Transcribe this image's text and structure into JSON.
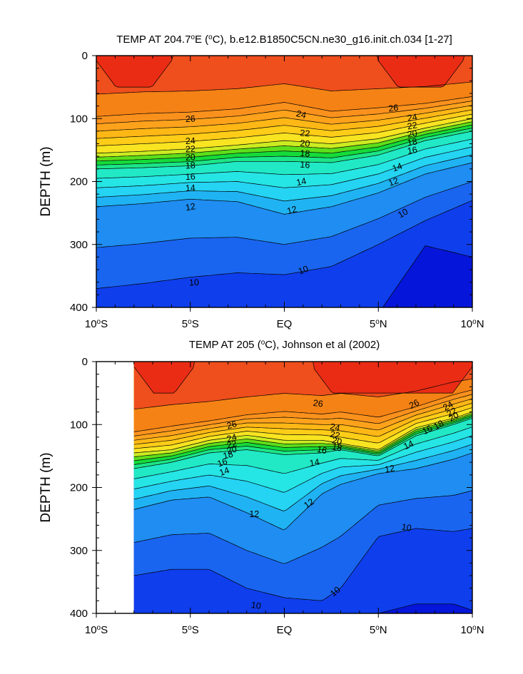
{
  "chart_data": [
    {
      "type": "contour",
      "title_parts": [
        "TEMP AT 204.7",
        "o",
        "E (",
        "o",
        "C), b.e12.B1850C5CN.ne30_g16.init.ch.034 [1-27]"
      ],
      "xlabel": "",
      "ylabel": "DEPTH (m)",
      "xlim": [
        -10,
        10
      ],
      "ylim": [
        400,
        0
      ],
      "x_ticks": [
        -10,
        -5,
        0,
        5,
        10
      ],
      "x_tick_labels": [
        [
          "10",
          "o",
          "S"
        ],
        [
          "5",
          "o",
          "S"
        ],
        [
          "EQ"
        ],
        [
          "5",
          "o",
          "N"
        ],
        [
          "10",
          "o",
          "N"
        ]
      ],
      "y_ticks": [
        0,
        100,
        200,
        300,
        400
      ],
      "y_tick_labels": [
        "0",
        "100",
        "200",
        "300",
        "400"
      ],
      "data_start_lat": -10,
      "contour_interval": 1,
      "surface_warm_pools": [
        [
          -10,
          -6
        ],
        [
          5,
          9.5
        ]
      ],
      "isotherm_depths": {
        "lat": [
          -10,
          -7.5,
          -5,
          -2.5,
          0,
          2.5,
          5,
          7.5,
          10
        ],
        "t26": [
          85,
          80,
          78,
          73,
          62,
          78,
          73,
          68,
          58
        ],
        "t20": [
          155,
          152,
          148,
          142,
          135,
          140,
          132,
          115,
          100
        ],
        "t16": [
          180,
          178,
          175,
          168,
          168,
          170,
          158,
          135,
          120
        ],
        "t12": [
          240,
          235,
          228,
          232,
          252,
          240,
          218,
          188,
          170
        ],
        "t10": [
          370,
          362,
          352,
          345,
          348,
          335,
          300,
          262,
          230
        ],
        "t9": [
          420,
          420,
          420,
          420,
          420,
          420,
          410,
          302,
          320
        ]
      },
      "contour_labels": [
        {
          "t": "26",
          "lat": -5.0,
          "d": 100,
          "rot": -3
        },
        {
          "t": "24",
          "lat": 0.9,
          "d": 93,
          "rot": 14
        },
        {
          "t": "26",
          "lat": 5.8,
          "d": 83,
          "rot": -8
        },
        {
          "t": "24",
          "lat": -5.0,
          "d": 135,
          "rot": -3
        },
        {
          "t": "22",
          "lat": -5.0,
          "d": 148,
          "rot": -3
        },
        {
          "t": "20",
          "lat": -5.0,
          "d": 161,
          "rot": -3
        },
        {
          "t": "18",
          "lat": -5.0,
          "d": 174,
          "rot": -3
        },
        {
          "t": "16",
          "lat": -5.0,
          "d": 192,
          "rot": -3
        },
        {
          "t": "14",
          "lat": -5.0,
          "d": 210,
          "rot": -3
        },
        {
          "t": "12",
          "lat": -5.0,
          "d": 240,
          "rot": -10
        },
        {
          "t": "22",
          "lat": 1.1,
          "d": 123,
          "rot": 5
        },
        {
          "t": "20",
          "lat": 1.1,
          "d": 139,
          "rot": 5
        },
        {
          "t": "18",
          "lat": 1.1,
          "d": 155,
          "rot": 5
        },
        {
          "t": "16",
          "lat": 1.1,
          "d": 173,
          "rot": 5
        },
        {
          "t": "14",
          "lat": 0.9,
          "d": 200,
          "rot": -12
        },
        {
          "t": "12",
          "lat": 0.4,
          "d": 245,
          "rot": -15
        },
        {
          "t": "10",
          "lat": -4.8,
          "d": 360,
          "rot": -3
        },
        {
          "t": "10",
          "lat": 1.0,
          "d": 340,
          "rot": -20
        },
        {
          "t": "24",
          "lat": 6.8,
          "d": 98,
          "rot": -10
        },
        {
          "t": "22",
          "lat": 6.8,
          "d": 111,
          "rot": -10
        },
        {
          "t": "20",
          "lat": 6.8,
          "d": 124,
          "rot": -10
        },
        {
          "t": "18",
          "lat": 6.8,
          "d": 137,
          "rot": -10
        },
        {
          "t": "16",
          "lat": 6.8,
          "d": 150,
          "rot": -10
        },
        {
          "t": "14",
          "lat": 6.0,
          "d": 177,
          "rot": -20
        },
        {
          "t": "12",
          "lat": 5.8,
          "d": 200,
          "rot": -20
        },
        {
          "t": "10",
          "lat": 6.3,
          "d": 250,
          "rot": -30
        }
      ]
    },
    {
      "type": "contour",
      "title_parts": [
        "TEMP AT 205 (",
        "o",
        "C), Johnson et al (2002)"
      ],
      "xlabel": "",
      "ylabel": "DEPTH (m)",
      "xlim": [
        -10,
        10
      ],
      "ylim": [
        400,
        0
      ],
      "x_ticks": [
        -10,
        -5,
        0,
        5,
        10
      ],
      "x_tick_labels": [
        [
          "10",
          "o",
          "S"
        ],
        [
          "5",
          "o",
          "S"
        ],
        [
          "EQ"
        ],
        [
          "5",
          "o",
          "N"
        ],
        [
          "10",
          "o",
          "N"
        ]
      ],
      "y_ticks": [
        0,
        100,
        200,
        300,
        400
      ],
      "y_tick_labels": [
        "0",
        "100",
        "200",
        "300",
        "400"
      ],
      "data_start_lat": -8,
      "contour_interval": 1,
      "surface_warm_pools": [
        [
          -8,
          -4.8
        ],
        [
          1.5,
          10
        ]
      ],
      "isotherm_depths": {
        "lat": [
          -8,
          -6,
          -4,
          -2,
          0,
          2,
          3,
          5,
          7,
          9,
          10
        ],
        "t26": [
          105,
          95,
          88,
          78,
          70,
          75,
          70,
          78,
          65,
          45,
          38
        ],
        "t20": [
          145,
          140,
          125,
          117,
          125,
          125,
          130,
          140,
          105,
          90,
          80
        ],
        "t16": [
          170,
          160,
          145,
          140,
          148,
          145,
          140,
          150,
          118,
          100,
          90
        ],
        "t12": [
          235,
          220,
          215,
          240,
          268,
          210,
          195,
          178,
          170,
          155,
          145
        ],
        "t10": [
          340,
          330,
          330,
          360,
          375,
          380,
          360,
          278,
          265,
          270,
          265
        ],
        "t9": [
          420,
          420,
          420,
          420,
          420,
          420,
          420,
          400,
          385,
          385,
          395
        ]
      },
      "contour_labels": [
        {
          "t": "26",
          "lat": -2.8,
          "d": 100,
          "rot": -15
        },
        {
          "t": "24",
          "lat": -2.8,
          "d": 121,
          "rot": -15
        },
        {
          "t": "22",
          "lat": -2.8,
          "d": 131,
          "rot": -15
        },
        {
          "t": "20",
          "lat": -2.8,
          "d": 140,
          "rot": -15
        },
        {
          "t": "18",
          "lat": -3.0,
          "d": 148,
          "rot": -15
        },
        {
          "t": "16",
          "lat": -3.3,
          "d": 160,
          "rot": -20
        },
        {
          "t": "14",
          "lat": -3.2,
          "d": 174,
          "rot": -20
        },
        {
          "t": "12",
          "lat": -1.6,
          "d": 242,
          "rot": 0
        },
        {
          "t": "10",
          "lat": -1.5,
          "d": 387,
          "rot": 8
        },
        {
          "t": "26",
          "lat": 1.8,
          "d": 66,
          "rot": 8
        },
        {
          "t": "24",
          "lat": 2.7,
          "d": 104,
          "rot": 12
        },
        {
          "t": "22",
          "lat": 2.7,
          "d": 116,
          "rot": 12
        },
        {
          "t": "20",
          "lat": 2.8,
          "d": 126,
          "rot": 12
        },
        {
          "t": "18",
          "lat": 2.8,
          "d": 136,
          "rot": 12
        },
        {
          "t": "16",
          "lat": 2.0,
          "d": 140,
          "rot": 12
        },
        {
          "t": "14",
          "lat": 1.6,
          "d": 160,
          "rot": -10
        },
        {
          "t": "12",
          "lat": 1.3,
          "d": 225,
          "rot": -35
        },
        {
          "t": "10",
          "lat": 2.7,
          "d": 365,
          "rot": -40
        },
        {
          "t": "26",
          "lat": 6.9,
          "d": 67,
          "rot": -28
        },
        {
          "t": "24",
          "lat": 8.7,
          "d": 70,
          "rot": -30
        },
        {
          "t": "22",
          "lat": 8.9,
          "d": 80,
          "rot": -30
        },
        {
          "t": "20",
          "lat": 9.0,
          "d": 87,
          "rot": -30
        },
        {
          "t": "18",
          "lat": 8.2,
          "d": 100,
          "rot": -30
        },
        {
          "t": "16",
          "lat": 7.6,
          "d": 108,
          "rot": -30
        },
        {
          "t": "14",
          "lat": 6.6,
          "d": 132,
          "rot": -25
        },
        {
          "t": "12",
          "lat": 5.6,
          "d": 170,
          "rot": -10
        },
        {
          "t": "10",
          "lat": 6.5,
          "d": 263,
          "rot": 10
        }
      ]
    }
  ]
}
